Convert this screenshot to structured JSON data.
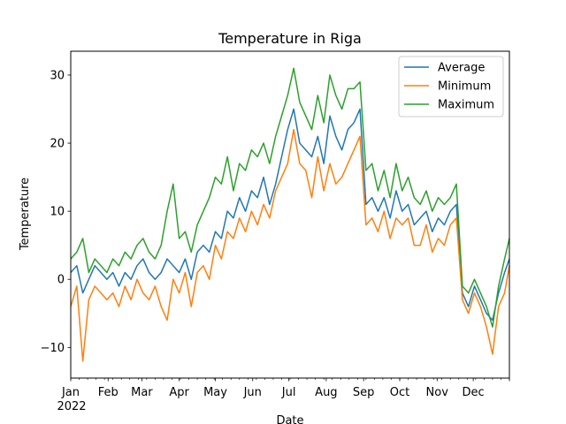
{
  "chart_data": {
    "type": "line",
    "title": "Temperature in Riga",
    "xlabel": "Date",
    "ylabel": "Temperature",
    "year_label": "2022",
    "x_tick_labels": [
      "Jan",
      "Feb",
      "Mar",
      "Apr",
      "May",
      "Jun",
      "Jul",
      "Aug",
      "Sep",
      "Oct",
      "Nov",
      "Dec"
    ],
    "y_ticks": [
      -10,
      0,
      10,
      20,
      30
    ],
    "xlim": [
      "2022-01-01",
      "2022-12-31"
    ],
    "ylim": [
      -14.5,
      33.5
    ],
    "grid": false,
    "legend_position": "upper right",
    "x_dates": [
      "2022-01-01",
      "2022-01-06",
      "2022-01-11",
      "2022-01-16",
      "2022-01-21",
      "2022-01-26",
      "2022-01-31",
      "2022-02-05",
      "2022-02-10",
      "2022-02-15",
      "2022-02-20",
      "2022-02-25",
      "2022-03-02",
      "2022-03-07",
      "2022-03-12",
      "2022-03-17",
      "2022-03-22",
      "2022-03-27",
      "2022-04-01",
      "2022-04-06",
      "2022-04-11",
      "2022-04-16",
      "2022-04-21",
      "2022-04-26",
      "2022-05-01",
      "2022-05-06",
      "2022-05-11",
      "2022-05-16",
      "2022-05-21",
      "2022-05-26",
      "2022-05-31",
      "2022-06-05",
      "2022-06-10",
      "2022-06-15",
      "2022-06-20",
      "2022-06-25",
      "2022-06-30",
      "2022-07-05",
      "2022-07-10",
      "2022-07-15",
      "2022-07-20",
      "2022-07-25",
      "2022-07-30",
      "2022-08-04",
      "2022-08-09",
      "2022-08-14",
      "2022-08-19",
      "2022-08-24",
      "2022-08-29",
      "2022-09-03",
      "2022-09-08",
      "2022-09-13",
      "2022-09-18",
      "2022-09-23",
      "2022-09-28",
      "2022-10-03",
      "2022-10-08",
      "2022-10-13",
      "2022-10-18",
      "2022-10-23",
      "2022-10-28",
      "2022-11-02",
      "2022-11-07",
      "2022-11-12",
      "2022-11-17",
      "2022-11-22",
      "2022-11-27",
      "2022-12-02",
      "2022-12-07",
      "2022-12-12",
      "2022-12-17",
      "2022-12-22",
      "2022-12-27",
      "2022-12-31"
    ],
    "series": [
      {
        "name": "Average",
        "color": "#1f77b4",
        "values": [
          1,
          2,
          -2,
          0,
          2,
          1,
          0,
          1,
          -1,
          1,
          0,
          2,
          3,
          1,
          0,
          1,
          3,
          2,
          1,
          3,
          0,
          4,
          5,
          4,
          7,
          6,
          10,
          9,
          12,
          10,
          13,
          12,
          15,
          11,
          14,
          18,
          22,
          25,
          20,
          19,
          18,
          21,
          17,
          24,
          21,
          19,
          22,
          23,
          25,
          11,
          12,
          10,
          12,
          9,
          13,
          10,
          11,
          8,
          9,
          10,
          7,
          9,
          8,
          10,
          11,
          -2,
          -4,
          -1,
          -3,
          -5,
          -6,
          -2,
          1,
          3
        ]
      },
      {
        "name": "Minimum",
        "color": "#ff7f0e",
        "values": [
          -4,
          -1,
          -12,
          -3,
          -1,
          -2,
          -3,
          -2,
          -4,
          -1,
          -3,
          0,
          -2,
          -3,
          -1,
          -4,
          -6,
          0,
          -2,
          1,
          -4,
          1,
          2,
          0,
          5,
          3,
          7,
          6,
          9,
          7,
          10,
          8,
          11,
          9,
          13,
          15,
          17,
          22,
          17,
          16,
          12,
          18,
          13,
          17,
          14,
          15,
          17,
          19,
          21,
          8,
          9,
          7,
          10,
          6,
          9,
          8,
          9,
          5,
          5,
          8,
          4,
          6,
          5,
          8,
          9,
          -3,
          -5,
          -2,
          -4,
          -7,
          -11,
          -4,
          -2,
          2
        ]
      },
      {
        "name": "Maximum",
        "color": "#2ca02c",
        "values": [
          3,
          4,
          6,
          1,
          3,
          2,
          1,
          3,
          2,
          4,
          3,
          5,
          6,
          4,
          3,
          5,
          10,
          14,
          6,
          7,
          4,
          8,
          10,
          12,
          15,
          14,
          18,
          13,
          17,
          16,
          19,
          18,
          20,
          17,
          21,
          24,
          27,
          31,
          26,
          24,
          22,
          27,
          23,
          30,
          27,
          25,
          28,
          28,
          29,
          16,
          17,
          13,
          16,
          12,
          17,
          13,
          15,
          12,
          11,
          13,
          10,
          12,
          11,
          12,
          14,
          -1,
          -2,
          0,
          -2,
          -4,
          -7,
          -1,
          3,
          6
        ]
      }
    ]
  }
}
